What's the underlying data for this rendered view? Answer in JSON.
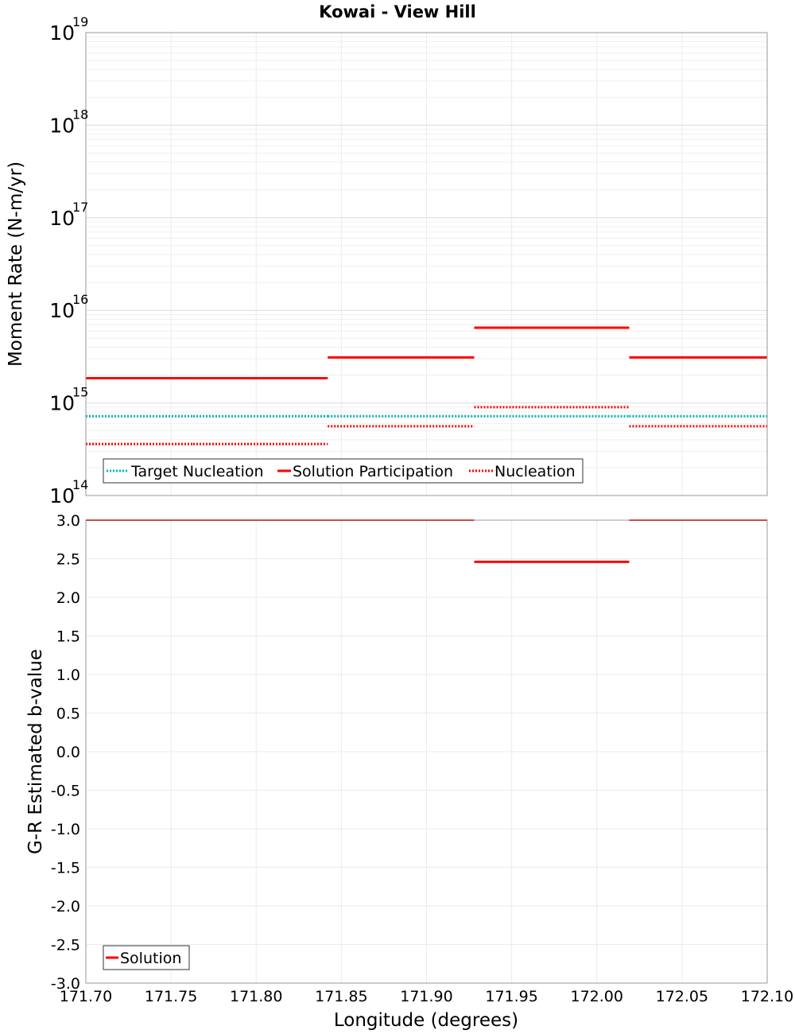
{
  "chart_data": [
    {
      "type": "line",
      "title": "Kowai - View Hill",
      "ylabel": "Moment Rate (N-m/yr)",
      "yscale": "log",
      "ylim": [
        100000000000000.0,
        1e+19
      ],
      "y_tick_labels": [
        {
          "base": "10",
          "exp": "14",
          "value": 100000000000000.0
        },
        {
          "base": "10",
          "exp": "15",
          "value": 1000000000000000.0
        },
        {
          "base": "10",
          "exp": "16",
          "value": 1e+16
        },
        {
          "base": "10",
          "exp": "17",
          "value": 1e+17
        },
        {
          "base": "10",
          "exp": "18",
          "value": 1e+18
        },
        {
          "base": "10",
          "exp": "19",
          "value": 1e+19
        }
      ],
      "xlim": [
        171.7,
        172.1
      ],
      "legend": {
        "position": "bottom-left",
        "entries": [
          "Target Nucleation",
          "Solution Participation",
          "Nucleation"
        ]
      },
      "series": [
        {
          "name": "Target Nucleation",
          "color": "#00b3b3",
          "style": "dotted",
          "segments": [
            {
              "x": [
                171.7,
                171.763
              ],
              "y": 720000000000000.0
            },
            {
              "x": [
                171.763,
                171.842
              ],
              "y": 720000000000000.0
            },
            {
              "x": [
                171.842,
                171.928
              ],
              "y": 720000000000000.0
            },
            {
              "x": [
                171.928,
                172.019
              ],
              "y": 720000000000000.0
            },
            {
              "x": [
                172.019,
                172.1
              ],
              "y": 720000000000000.0
            }
          ]
        },
        {
          "name": "Solution Participation",
          "color": "#ff0000",
          "style": "solid",
          "segments": [
            {
              "x": [
                171.7,
                171.763
              ],
              "y": 1850000000000000.0
            },
            {
              "x": [
                171.763,
                171.842
              ],
              "y": 1850000000000000.0
            },
            {
              "x": [
                171.842,
                171.928
              ],
              "y": 3100000000000000.0
            },
            {
              "x": [
                171.928,
                172.019
              ],
              "y": 6500000000000000.0
            },
            {
              "x": [
                172.019,
                172.1
              ],
              "y": 3100000000000000.0
            }
          ]
        },
        {
          "name": "Nucleation",
          "color": "#ff0000",
          "style": "dotted",
          "segments": [
            {
              "x": [
                171.7,
                171.763
              ],
              "y": 360000000000000.0
            },
            {
              "x": [
                171.763,
                171.842
              ],
              "y": 360000000000000.0
            },
            {
              "x": [
                171.842,
                171.928
              ],
              "y": 560000000000000.0
            },
            {
              "x": [
                171.928,
                172.019
              ],
              "y": 900000000000000.0
            },
            {
              "x": [
                172.019,
                172.1
              ],
              "y": 560000000000000.0
            }
          ]
        }
      ]
    },
    {
      "type": "line",
      "xlabel": "Longitude (degrees)",
      "ylabel": "G-R Estimated b-value",
      "ylim": [
        -3.0,
        3.0
      ],
      "y_ticks": [
        "-3.0",
        "-2.5",
        "-2.0",
        "-1.5",
        "-1.0",
        "-0.5",
        "0.0",
        "0.5",
        "1.0",
        "1.5",
        "2.0",
        "2.5",
        "3.0"
      ],
      "xlim": [
        171.7,
        172.1
      ],
      "x_ticks": [
        "171.70",
        "171.75",
        "171.80",
        "171.85",
        "171.90",
        "171.95",
        "172.00",
        "172.05",
        "172.10"
      ],
      "legend": {
        "position": "bottom-left",
        "entries": [
          "Solution"
        ]
      },
      "series": [
        {
          "name": "Solution",
          "color": "#ff0000",
          "style": "solid",
          "segments": [
            {
              "x": [
                171.7,
                171.763
              ],
              "y": 3.0
            },
            {
              "x": [
                171.763,
                171.842
              ],
              "y": 3.0
            },
            {
              "x": [
                171.842,
                171.928
              ],
              "y": 3.0
            },
            {
              "x": [
                171.928,
                172.019
              ],
              "y": 2.46
            },
            {
              "x": [
                172.019,
                172.1
              ],
              "y": 3.0
            }
          ]
        }
      ]
    }
  ]
}
